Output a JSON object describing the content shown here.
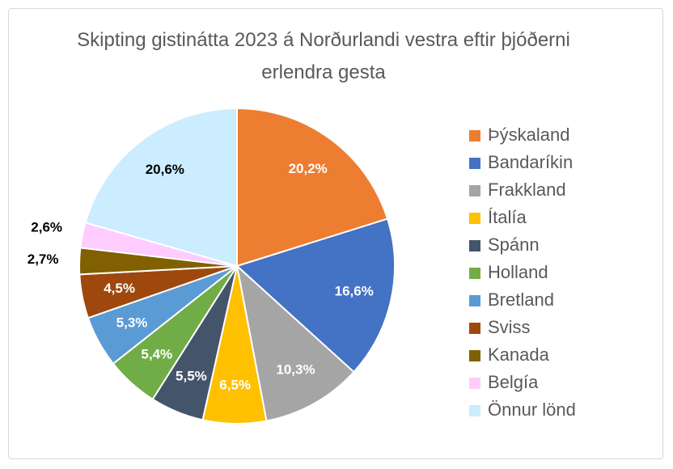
{
  "chart_data": {
    "type": "pie",
    "title": "Skipting gistinátta 2023 á Norðurlandi vestra eftir þjóðerni erlendra gesta",
    "categories": [
      "Þýskaland",
      "Bandaríkin",
      "Frakkland",
      "Ítalía",
      "Spánn",
      "Holland",
      "Bretland",
      "Sviss",
      "Kanada",
      "Belgía",
      "Önnur lönd"
    ],
    "values": [
      20.2,
      16.6,
      10.3,
      6.5,
      5.5,
      5.4,
      5.3,
      4.5,
      2.7,
      2.6,
      20.6
    ],
    "value_labels": [
      "20,2%",
      "16,6%",
      "10,3%",
      "6,5%",
      "5,5%",
      "5,4%",
      "5,3%",
      "4,5%",
      "2,7%",
      "2,6%",
      "20,6%"
    ],
    "colors": [
      "#ED7D31",
      "#4472C4",
      "#A5A5A5",
      "#FFC000",
      "#44546A",
      "#70AD47",
      "#5B9BD5",
      "#9E480E",
      "#806000",
      "#FFCCFF",
      "#CCECFF"
    ],
    "legend": "right"
  }
}
